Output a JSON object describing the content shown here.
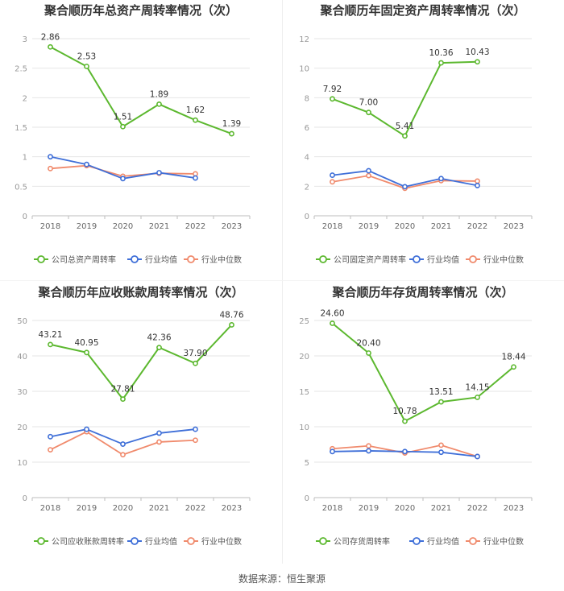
{
  "source": "数据来源：恒生聚源",
  "colors": {
    "company": "#5cb82f",
    "avg": "#3f6fd8",
    "median": "#f08a6c",
    "grid": "#e6e6e6",
    "axis": "#999999"
  },
  "chart_data": [
    {
      "type": "line",
      "title": "聚合顺历年总资产周转率情况（次）",
      "x": [
        "2018",
        "2019",
        "2020",
        "2021",
        "2022",
        "2023"
      ],
      "ylim": [
        0,
        3
      ],
      "yticks": [
        "0",
        "0.5",
        "1",
        "1.5",
        "2",
        "2.5",
        "3"
      ],
      "grid": true,
      "legend": "bottom",
      "series": [
        {
          "name": "公司总资产周转率",
          "values": [
            2.86,
            2.53,
            1.51,
            1.89,
            1.62,
            1.39
          ],
          "labels": [
            "2.86",
            "2.53",
            "1.51",
            "1.89",
            "1.62",
            "1.39"
          ]
        },
        {
          "name": "行业均值",
          "values": [
            1.0,
            0.87,
            0.63,
            0.73,
            0.64,
            null
          ]
        },
        {
          "name": "行业中位数",
          "values": [
            0.8,
            0.85,
            0.67,
            0.72,
            0.71,
            null
          ]
        }
      ]
    },
    {
      "type": "line",
      "title": "聚合顺历年固定资产周转率情况（次）",
      "x": [
        "2018",
        "2019",
        "2020",
        "2021",
        "2022",
        "2023"
      ],
      "ylim": [
        0,
        12
      ],
      "yticks": [
        "0",
        "2",
        "4",
        "6",
        "8",
        "10",
        "12"
      ],
      "grid": true,
      "legend": "bottom",
      "series": [
        {
          "name": "公司固定资产周转率",
          "values": [
            7.92,
            7.0,
            5.41,
            10.36,
            10.43,
            null
          ],
          "labels": [
            "7.92",
            "7.00",
            "5.41",
            "10.36",
            "10.43",
            ""
          ]
        },
        {
          "name": "行业均值",
          "values": [
            2.75,
            3.05,
            1.97,
            2.52,
            2.05,
            null
          ]
        },
        {
          "name": "行业中位数",
          "values": [
            2.3,
            2.72,
            1.86,
            2.38,
            2.35,
            null
          ]
        }
      ]
    },
    {
      "type": "line",
      "title": "聚合顺历年应收账款周转率情况（次）",
      "x": [
        "2018",
        "2019",
        "2020",
        "2021",
        "2022",
        "2023"
      ],
      "ylim": [
        0,
        50
      ],
      "yticks": [
        "0",
        "10",
        "20",
        "30",
        "40",
        "50"
      ],
      "grid": true,
      "legend": "bottom",
      "series": [
        {
          "name": "公司应收账款周转率",
          "values": [
            43.21,
            40.95,
            27.81,
            42.36,
            37.9,
            48.76
          ],
          "labels": [
            "43.21",
            "40.95",
            "27.81",
            "42.36",
            "37.90",
            "48.76"
          ]
        },
        {
          "name": "行业均值",
          "values": [
            17.2,
            19.3,
            15.1,
            18.2,
            19.3,
            null
          ]
        },
        {
          "name": "行业中位数",
          "values": [
            13.5,
            18.6,
            12.1,
            15.7,
            16.2,
            null
          ]
        }
      ]
    },
    {
      "type": "line",
      "title": "聚合顺历年存货周转率情况（次）",
      "x": [
        "2018",
        "2019",
        "2020",
        "2021",
        "2022",
        "2023"
      ],
      "ylim": [
        0,
        25
      ],
      "yticks": [
        "0",
        "5",
        "10",
        "15",
        "20",
        "25"
      ],
      "grid": true,
      "legend": "bottom",
      "series": [
        {
          "name": "公司存货周转率",
          "values": [
            24.6,
            20.4,
            10.78,
            13.51,
            14.15,
            18.44
          ],
          "labels": [
            "24.60",
            "20.40",
            "10.78",
            "13.51",
            "14.15",
            "18.44"
          ]
        },
        {
          "name": "行业均值",
          "values": [
            6.5,
            6.6,
            6.5,
            6.4,
            5.8,
            null
          ]
        },
        {
          "name": "行业中位数",
          "values": [
            6.9,
            7.3,
            6.3,
            7.4,
            5.8,
            null
          ]
        }
      ]
    }
  ]
}
